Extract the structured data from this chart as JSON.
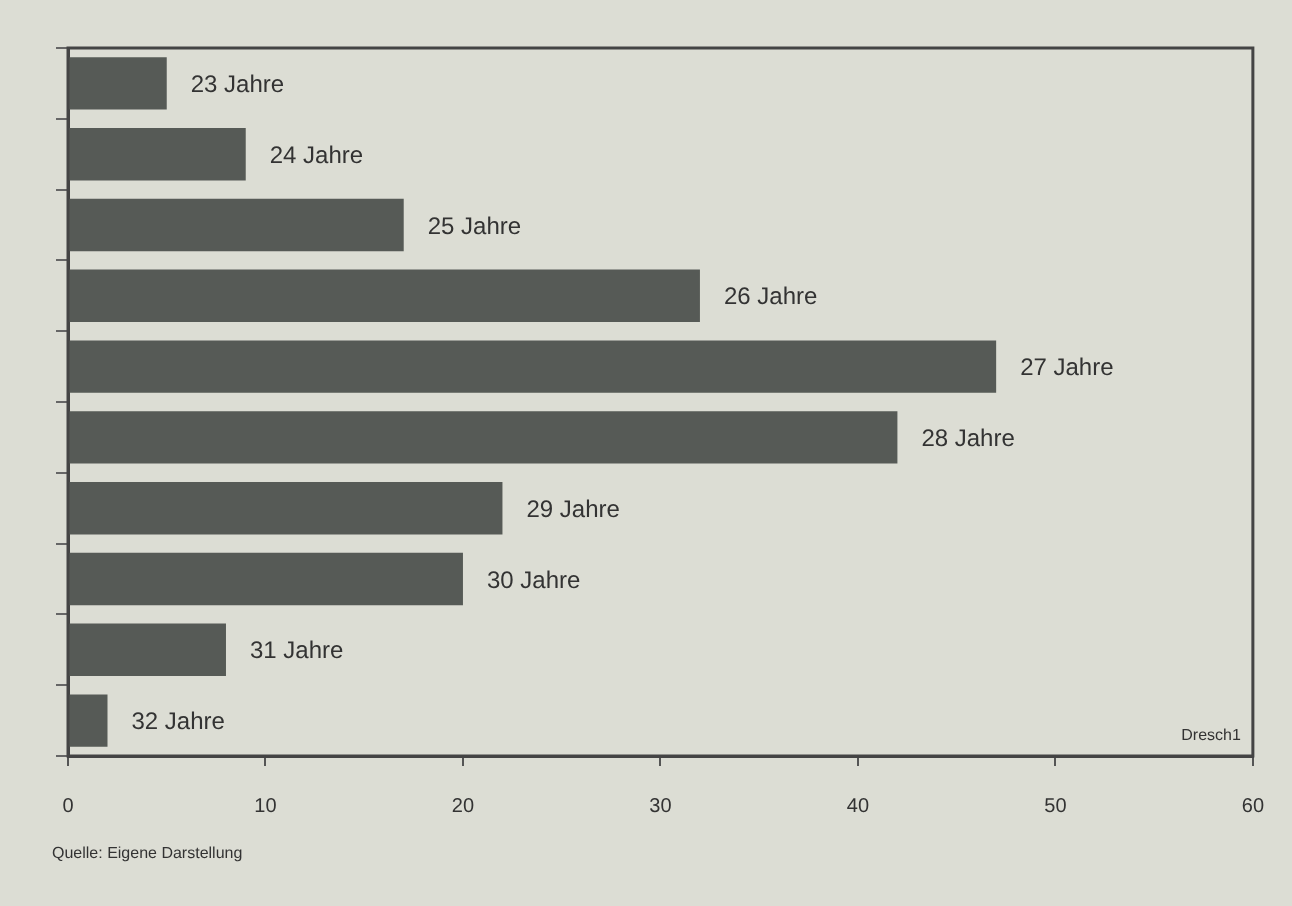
{
  "chart_data": {
    "type": "bar",
    "orientation": "horizontal",
    "categories": [
      "23 Jahre",
      "24 Jahre",
      "25 Jahre",
      "26 Jahre",
      "27 Jahre",
      "28 Jahre",
      "29 Jahre",
      "30 Jahre",
      "31 Jahre",
      "32 Jahre"
    ],
    "values": [
      5,
      9,
      17,
      32,
      47,
      42,
      22,
      20,
      8,
      2
    ],
    "color": "#565a56",
    "xlim": [
      0,
      60
    ],
    "xticks": [
      0,
      10,
      20,
      30,
      40,
      50,
      60
    ],
    "grid": false,
    "legend": false,
    "tick_labels": "x",
    "annotations": [
      "Dresch1",
      "Quelle: Eigene Darstellung"
    ]
  }
}
